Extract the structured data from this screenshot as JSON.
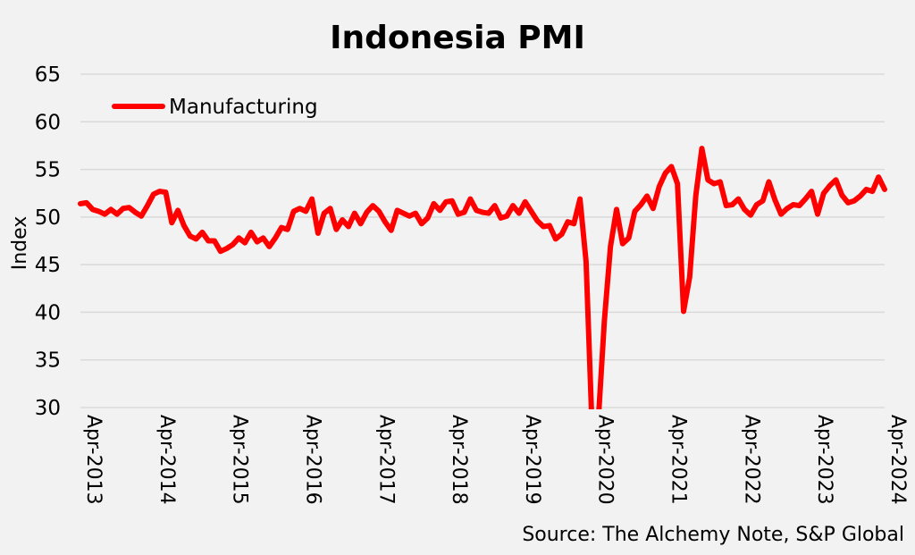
{
  "chart_data": {
    "type": "line",
    "title": "Indonesia PMI",
    "ylabel": "Index",
    "xlabel": "",
    "ylim": [
      30,
      65
    ],
    "yticks": [
      30,
      35,
      40,
      45,
      50,
      55,
      60,
      65
    ],
    "xlim": [
      "2013-04",
      "2024-04"
    ],
    "xticks": [
      "Apr-2013",
      "Apr-2014",
      "Apr-2015",
      "Apr-2016",
      "Apr-2017",
      "Apr-2018",
      "Apr-2019",
      "Apr-2020",
      "Apr-2021",
      "Apr-2022",
      "Apr-2023",
      "Apr-2024"
    ],
    "grid": true,
    "legend_position": "top-left",
    "source": "Source: The Alchemy Note, S&P Global",
    "series": [
      {
        "name": "Manufacturing",
        "color": "#ff0000",
        "x": [
          "2013-04",
          "2013-05",
          "2013-06",
          "2013-07",
          "2013-08",
          "2013-09",
          "2013-10",
          "2013-11",
          "2013-12",
          "2014-01",
          "2014-02",
          "2014-03",
          "2014-04",
          "2014-05",
          "2014-06",
          "2014-07",
          "2014-08",
          "2014-09",
          "2014-10",
          "2014-11",
          "2014-12",
          "2015-01",
          "2015-02",
          "2015-03",
          "2015-04",
          "2015-05",
          "2015-06",
          "2015-07",
          "2015-08",
          "2015-09",
          "2015-10",
          "2015-11",
          "2015-12",
          "2016-01",
          "2016-02",
          "2016-03",
          "2016-04",
          "2016-05",
          "2016-06",
          "2016-07",
          "2016-08",
          "2016-09",
          "2016-10",
          "2016-11",
          "2016-12",
          "2017-01",
          "2017-02",
          "2017-03",
          "2017-04",
          "2017-05",
          "2017-06",
          "2017-07",
          "2017-08",
          "2017-09",
          "2017-10",
          "2017-11",
          "2017-12",
          "2018-01",
          "2018-02",
          "2018-03",
          "2018-04",
          "2018-05",
          "2018-06",
          "2018-07",
          "2018-08",
          "2018-09",
          "2018-10",
          "2018-11",
          "2018-12",
          "2019-01",
          "2019-02",
          "2019-03",
          "2019-04",
          "2019-05",
          "2019-06",
          "2019-07",
          "2019-08",
          "2019-09",
          "2019-10",
          "2019-11",
          "2019-12",
          "2020-01",
          "2020-02",
          "2020-03",
          "2020-04",
          "2020-05",
          "2020-06",
          "2020-07",
          "2020-08",
          "2020-09",
          "2020-10",
          "2020-11",
          "2020-12",
          "2021-01",
          "2021-02",
          "2021-03",
          "2021-04",
          "2021-05",
          "2021-06",
          "2021-07",
          "2021-08",
          "2021-09",
          "2021-10",
          "2021-11",
          "2021-12",
          "2022-01",
          "2022-02",
          "2022-03",
          "2022-04",
          "2022-05",
          "2022-06",
          "2022-07",
          "2022-08",
          "2022-09",
          "2022-10",
          "2022-11",
          "2022-12",
          "2023-01",
          "2023-02",
          "2023-03",
          "2023-04",
          "2023-05",
          "2023-06",
          "2023-07",
          "2023-08",
          "2023-09",
          "2023-10",
          "2023-11",
          "2023-12",
          "2024-01",
          "2024-02",
          "2024-03",
          "2024-04"
        ],
        "values": [
          51.4,
          51.5,
          50.8,
          50.6,
          50.3,
          50.8,
          50.3,
          50.9,
          51.0,
          50.5,
          50.1,
          51.2,
          52.4,
          52.7,
          52.6,
          49.4,
          50.7,
          49.1,
          48.0,
          47.7,
          48.4,
          47.5,
          47.5,
          46.4,
          46.7,
          47.1,
          47.8,
          47.3,
          48.4,
          47.4,
          47.8,
          46.9,
          47.8,
          48.9,
          48.7,
          50.6,
          50.9,
          50.6,
          51.9,
          48.3,
          50.4,
          50.9,
          48.7,
          49.7,
          49.0,
          50.4,
          49.3,
          50.5,
          51.2,
          50.6,
          49.5,
          48.6,
          50.7,
          50.4,
          50.1,
          50.4,
          49.3,
          49.9,
          51.4,
          50.7,
          51.6,
          51.7,
          50.3,
          50.5,
          51.9,
          50.7,
          50.5,
          50.4,
          51.2,
          49.9,
          50.1,
          51.2,
          50.4,
          51.6,
          50.6,
          49.6,
          49.0,
          49.1,
          47.7,
          48.2,
          49.5,
          49.3,
          51.9,
          45.3,
          27.5,
          28.6,
          39.1,
          46.9,
          50.8,
          47.2,
          47.8,
          50.6,
          51.3,
          52.2,
          50.9,
          53.2,
          54.6,
          55.3,
          53.5,
          40.1,
          43.7,
          52.2,
          57.2,
          53.9,
          53.5,
          53.7,
          51.2,
          51.3,
          51.9,
          50.8,
          50.2,
          51.3,
          51.7,
          53.7,
          51.8,
          50.3,
          50.9,
          51.3,
          51.2,
          51.9,
          52.7,
          50.3,
          52.5,
          53.3,
          53.9,
          52.3,
          51.5,
          51.7,
          52.2,
          52.9,
          52.7,
          54.2,
          52.9
        ]
      }
    ]
  }
}
